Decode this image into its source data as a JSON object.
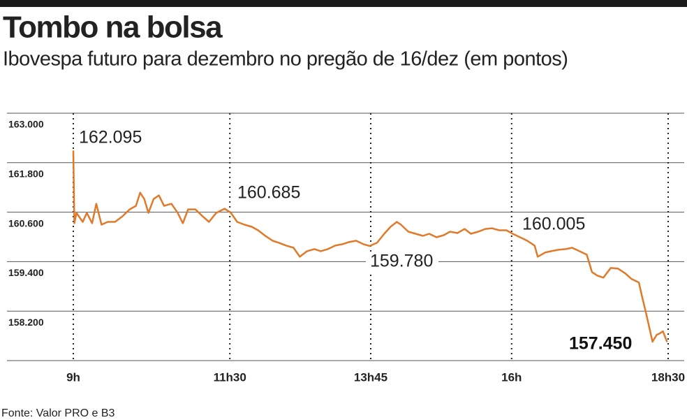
{
  "chart_data": {
    "type": "line",
    "title": "Tombo na bolsa",
    "subtitle": "Ibovespa futuro para dezembro no pregão de 16/dez (em pontos)",
    "source": "Fonte: Valor PRO e B3",
    "annotations": [
      "162.095",
      "160.685",
      "159.780",
      "160.005",
      "157.450"
    ],
    "x": [
      540,
      541,
      543,
      549,
      553,
      558,
      562,
      567,
      573,
      580,
      587,
      594,
      600,
      604,
      608,
      612,
      617,
      622,
      627,
      634,
      640,
      645,
      650,
      657,
      664,
      670,
      677,
      685,
      691,
      697,
      704,
      711,
      717,
      724,
      731,
      737,
      744,
      751,
      757,
      764,
      771,
      777,
      784,
      791,
      798,
      804,
      811,
      818,
      824,
      831,
      838,
      844,
      850,
      854,
      861,
      868,
      875,
      881,
      888,
      895,
      901,
      908,
      915,
      921,
      928,
      935,
      941,
      948,
      955,
      961,
      967,
      975,
      982,
      985,
      992,
      998,
      1005,
      1012,
      1018,
      1025,
      1032,
      1037,
      1042,
      1048,
      1055,
      1062,
      1069,
      1075,
      1082,
      1085,
      1089,
      1092,
      1095,
      1099,
      1102,
      1105,
      1109
    ],
    "series": [
      {
        "color": "#e07a2a",
        "values": [
          162095,
          160330,
          160583,
          160364,
          160583,
          160330,
          160803,
          160296,
          160364,
          160364,
          160499,
          160668,
          160752,
          161073,
          160921,
          160583,
          160921,
          161006,
          160752,
          160803,
          160583,
          160330,
          160668,
          160668,
          160499,
          160364,
          160583,
          160685,
          160583,
          160364,
          160296,
          160245,
          160161,
          160026,
          159907,
          159857,
          159790,
          159738,
          159519,
          159654,
          159705,
          159654,
          159705,
          159790,
          159823,
          159874,
          159907,
          159823,
          159780,
          159857,
          160076,
          160245,
          160364,
          160296,
          160127,
          160076,
          160026,
          160076,
          159992,
          160043,
          160127,
          160093,
          160194,
          160076,
          160127,
          160194,
          160211,
          160161,
          160161,
          160076,
          160005,
          159907,
          159790,
          159519,
          159620,
          159654,
          159688,
          159705,
          159738,
          159654,
          159570,
          159147,
          159063,
          159012,
          159248,
          159231,
          159113,
          158978,
          158894,
          158556,
          158133,
          157795,
          157457,
          157626,
          157660,
          157711,
          157450
        ]
      }
    ],
    "xlim": [
      540,
      1110
    ],
    "xticks": [
      {
        "value": 540,
        "label": "9h"
      },
      {
        "value": 690,
        "label": "11h30"
      },
      {
        "value": 825,
        "label": "13h45"
      },
      {
        "value": 960,
        "label": "16h"
      },
      {
        "value": 1110,
        "label": "18h30"
      }
    ],
    "ylim": [
      157000,
      163000
    ],
    "yticks": [
      {
        "value": 163000,
        "label": "163.000"
      },
      {
        "value": 161800,
        "label": "161.800"
      },
      {
        "value": 160600,
        "label": "160.600"
      },
      {
        "value": 159400,
        "label": "159.400"
      },
      {
        "value": 158200,
        "label": "158.200"
      }
    ],
    "grid": true
  }
}
